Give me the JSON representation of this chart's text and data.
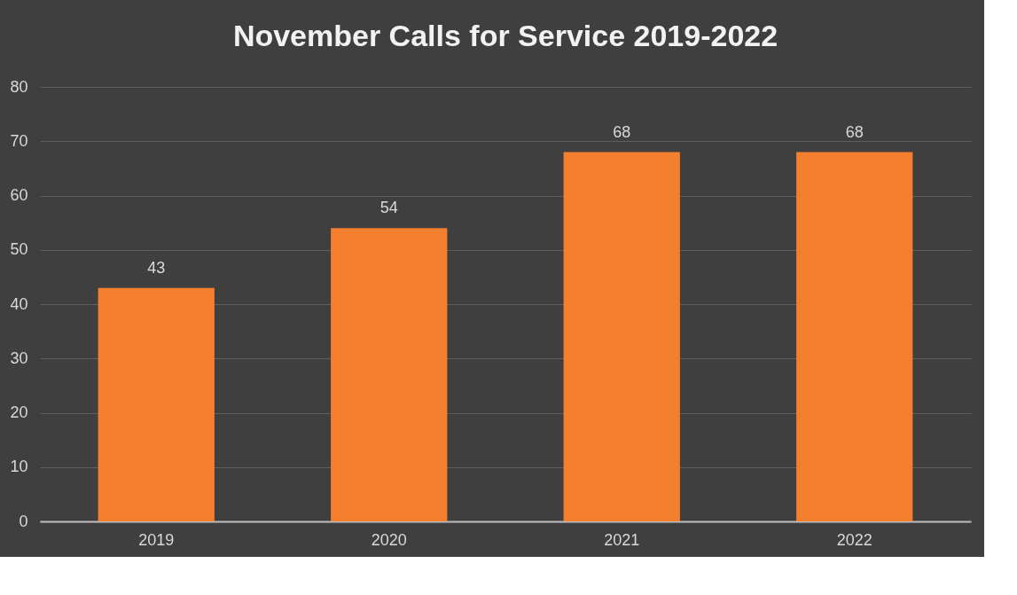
{
  "chart_data": {
    "type": "bar",
    "title": "November Calls for Service 2019-2022",
    "categories": [
      "2019",
      "2020",
      "2021",
      "2022"
    ],
    "series": [
      {
        "color": "#f47f2f",
        "values": [
          43,
          54,
          68,
          68
        ]
      }
    ],
    "ylim": [
      0,
      80
    ],
    "yticks": [
      0,
      10,
      20,
      30,
      40,
      50,
      60,
      70,
      80
    ],
    "grid": "y",
    "data_labels": true
  }
}
